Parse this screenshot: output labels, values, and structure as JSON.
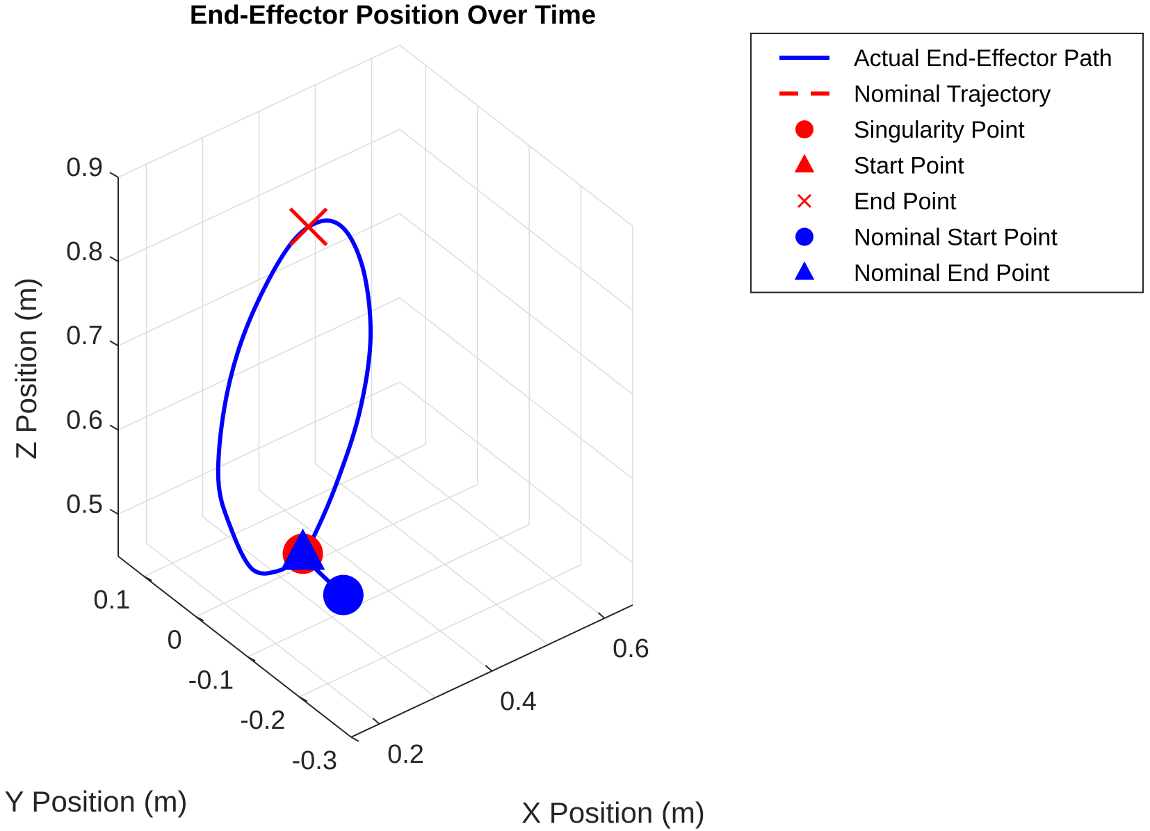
{
  "chart_data": {
    "type": "line",
    "title": "End-Effector Position Over Time",
    "xlabel": "X Position (m)",
    "ylabel": "Y Position (m)",
    "zlabel": "Z Position (m)",
    "xlim": [
      0.15,
      0.65
    ],
    "ylim": [
      -0.3,
      0.15
    ],
    "zlim": [
      0.45,
      0.9
    ],
    "x_ticks": [
      "0.2",
      "0.4",
      "0.6"
    ],
    "y_ticks": [
      "0.1",
      "0",
      "-0.1",
      "-0.2",
      "-0.3"
    ],
    "z_ticks": [
      "0.5",
      "0.6",
      "0.7",
      "0.8",
      "0.9"
    ],
    "grid": true,
    "legend_position": "outside-right",
    "colors": {
      "actual": "#0000ff",
      "nominal": "#ff0000"
    },
    "legend": [
      {
        "label": "Actual End-Effector Path",
        "marker": "line",
        "color": "#0000ff"
      },
      {
        "label": "Nominal Trajectory",
        "marker": "dashed-line",
        "color": "#ff0000"
      },
      {
        "label": "Singularity Point",
        "marker": "circle",
        "color": "#ff0000"
      },
      {
        "label": "Start Point",
        "marker": "triangle",
        "color": "#ff0000"
      },
      {
        "label": "End Point",
        "marker": "x",
        "color": "#ff0000"
      },
      {
        "label": "Nominal Start Point",
        "marker": "circle",
        "color": "#0000ff"
      },
      {
        "label": "Nominal End Point",
        "marker": "triangle",
        "color": "#0000ff"
      }
    ],
    "series": [
      {
        "name": "Actual End-Effector Path",
        "type": "line3d",
        "color": "#0000ff",
        "points": [
          {
            "x": 0.34,
            "y": 0.0,
            "z": 0.465
          },
          {
            "x": 0.3,
            "y": 0.0,
            "z": 0.458
          },
          {
            "x": 0.25,
            "y": 0.0,
            "z": 0.475
          },
          {
            "x": 0.21,
            "y": 0.0,
            "z": 0.54
          },
          {
            "x": 0.19,
            "y": 0.0,
            "z": 0.6
          },
          {
            "x": 0.2,
            "y": 0.0,
            "z": 0.68
          },
          {
            "x": 0.23,
            "y": 0.0,
            "z": 0.75
          },
          {
            "x": 0.28,
            "y": 0.0,
            "z": 0.81
          },
          {
            "x": 0.33,
            "y": 0.0,
            "z": 0.845
          },
          {
            "x": 0.38,
            "y": 0.0,
            "z": 0.848
          },
          {
            "x": 0.42,
            "y": 0.0,
            "z": 0.82
          },
          {
            "x": 0.45,
            "y": 0.0,
            "z": 0.76
          },
          {
            "x": 0.46,
            "y": 0.0,
            "z": 0.68
          },
          {
            "x": 0.44,
            "y": 0.0,
            "z": 0.6
          },
          {
            "x": 0.4,
            "y": 0.0,
            "z": 0.53
          },
          {
            "x": 0.36,
            "y": 0.0,
            "z": 0.48
          },
          {
            "x": 0.34,
            "y": 0.0,
            "z": 0.465
          },
          {
            "x": 0.32,
            "y": -0.1,
            "z": 0.47
          }
        ]
      }
    ],
    "markers": [
      {
        "name": "Singularity Point",
        "marker": "circle",
        "color": "#ff0000",
        "x": 0.34,
        "y": 0.0,
        "z": 0.465
      },
      {
        "name": "End Point",
        "marker": "x",
        "color": "#ff0000",
        "x": 0.35,
        "y": 0.0,
        "z": 0.85
      },
      {
        "name": "Nominal Start Point",
        "marker": "circle",
        "color": "#0000ff",
        "x": 0.32,
        "y": -0.1,
        "z": 0.47
      },
      {
        "name": "Nominal End Point",
        "marker": "triangle",
        "color": "#0000ff",
        "x": 0.34,
        "y": 0.0,
        "z": 0.465
      }
    ]
  }
}
